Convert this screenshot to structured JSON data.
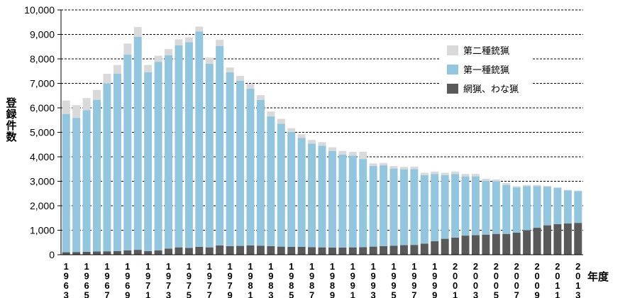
{
  "chart_data": {
    "type": "bar",
    "stacked": true,
    "title": "",
    "ylabel": "登録件数",
    "xlabel": "年度",
    "ylim": [
      0,
      10000
    ],
    "yticks": [
      0,
      1000,
      2000,
      3000,
      4000,
      5000,
      6000,
      7000,
      8000,
      9000,
      10000
    ],
    "ytick_labels": [
      "0",
      "1,000",
      "2,000",
      "3,000",
      "4,000",
      "5,000",
      "6,000",
      "7,000",
      "8,000",
      "9,000",
      "10,000"
    ],
    "grid": "horizontal dashed",
    "legend_position": "top-right",
    "colors": {
      "net_trap": "#595959",
      "first_class": "#92c5de",
      "second_class": "#d9d9d9"
    },
    "categories": [
      "1963",
      "1964",
      "1965",
      "1966",
      "1967",
      "1968",
      "1969",
      "1970",
      "1971",
      "1972",
      "1973",
      "1974",
      "1975",
      "1976",
      "1977",
      "1978",
      "1979",
      "1980",
      "1981",
      "1982",
      "1983",
      "1984",
      "1985",
      "1986",
      "1987",
      "1988",
      "1989",
      "1990",
      "1991",
      "1992",
      "1993",
      "1994",
      "1995",
      "1996",
      "1997",
      "1998",
      "1999",
      "2000",
      "2001",
      "2002",
      "2003",
      "2004",
      "2005",
      "2006",
      "2007",
      "2008",
      "2009",
      "2010",
      "2011",
      "2012",
      "2013"
    ],
    "xtick_labels": [
      "1963",
      "1965",
      "1967",
      "1969",
      "1971",
      "1973",
      "1975",
      "1977",
      "1979",
      "1981",
      "1983",
      "1985",
      "1987",
      "1989",
      "1991",
      "1993",
      "1995",
      "1997",
      "1999",
      "2001",
      "2003",
      "2005",
      "2007",
      "2009",
      "2011",
      "2013"
    ],
    "series": [
      {
        "name": "網猟、わな猟",
        "color_key": "net_trap",
        "values": [
          100,
          110,
          120,
          130,
          140,
          150,
          180,
          200,
          150,
          180,
          250,
          300,
          280,
          320,
          300,
          380,
          350,
          360,
          380,
          370,
          350,
          330,
          320,
          320,
          310,
          300,
          290,
          290,
          300,
          310,
          330,
          350,
          370,
          390,
          400,
          450,
          550,
          650,
          700,
          780,
          800,
          820,
          850,
          850,
          900,
          1000,
          1100,
          1200,
          1250,
          1280,
          1300
        ]
      },
      {
        "name": "第一種銃猟",
        "color_key": "first_class",
        "values": [
          5650,
          5480,
          5780,
          6200,
          6850,
          7250,
          8000,
          8700,
          7300,
          7700,
          7900,
          8250,
          8400,
          8800,
          7500,
          8150,
          7100,
          6750,
          6400,
          5950,
          5300,
          5020,
          4700,
          4450,
          4230,
          4150,
          3950,
          3800,
          3750,
          3600,
          3300,
          3300,
          3150,
          3100,
          3100,
          2800,
          2750,
          2600,
          2600,
          2420,
          2400,
          2200,
          2150,
          2000,
          1850,
          1800,
          1700,
          1580,
          1480,
          1350,
          1300
        ]
      },
      {
        "name": "第二種銃猟",
        "color_key": "second_class",
        "values": [
          550,
          520,
          500,
          400,
          400,
          350,
          450,
          400,
          300,
          250,
          250,
          250,
          200,
          200,
          250,
          250,
          200,
          200,
          200,
          200,
          200,
          200,
          150,
          150,
          150,
          150,
          150,
          150,
          150,
          300,
          100,
          100,
          100,
          100,
          100,
          100,
          100,
          100,
          100,
          100,
          100,
          80,
          80,
          80,
          50,
          50,
          50,
          30,
          30,
          20,
          20
        ]
      }
    ]
  }
}
